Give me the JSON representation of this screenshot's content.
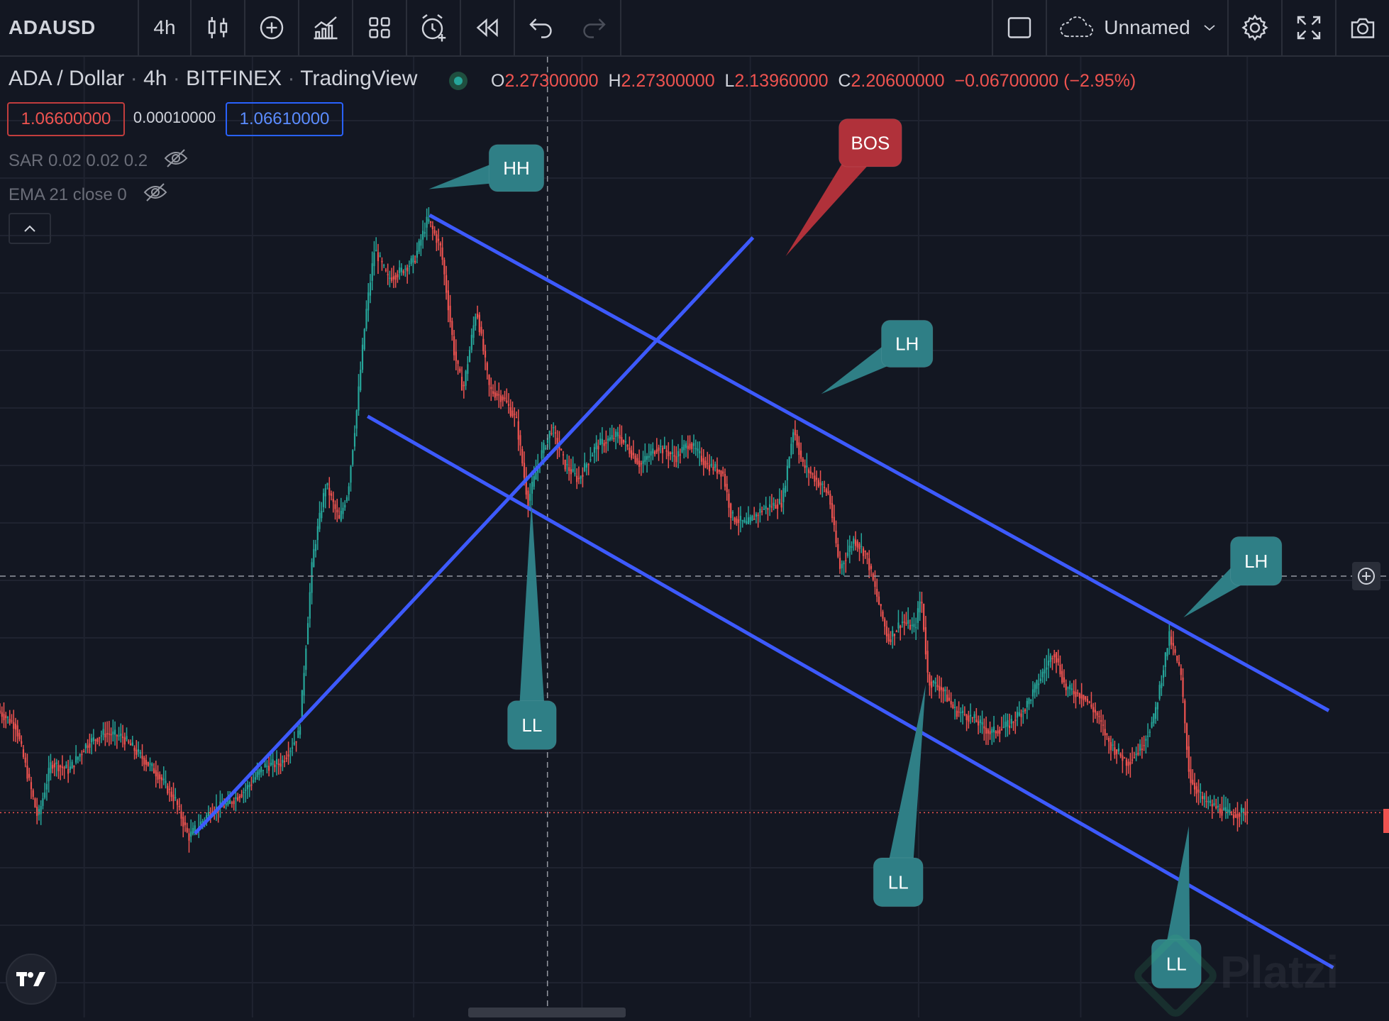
{
  "toolbar": {
    "symbol": "ADAUSD",
    "interval": "4h",
    "layout_name": "Unnamed",
    "icons": [
      "bar-style-icon",
      "add-compare-icon",
      "indicators-icon",
      "layout-templates-icon",
      "alert-icon",
      "replay-icon",
      "undo-icon",
      "redo-icon",
      "single-layout-icon",
      "cloud-icon",
      "settings-icon",
      "fullscreen-icon",
      "snapshot-icon"
    ]
  },
  "legend": {
    "pair": "ADA / Dollar",
    "interval": "4h",
    "exchange": "BITFINEX",
    "source": "TradingView",
    "sep": "·",
    "ohlc": {
      "o_label": "O",
      "o_value": "2.27300000",
      "h_label": "H",
      "h_value": "2.27300000",
      "l_label": "L",
      "l_value": "2.13960000",
      "c_label": "C",
      "c_value": "2.20600000",
      "change": "−0.06700000 (−2.95%)"
    }
  },
  "trade": {
    "sell_price": "1.06600000",
    "spread": "0.00010000",
    "buy_price": "1.06610000"
  },
  "indicators": [
    {
      "label": "SAR 0.02 0.02 0.2"
    },
    {
      "label": "EMA 21 close 0"
    }
  ],
  "watermark": "Platzi",
  "colors": {
    "background": "#131722",
    "grid": "#1f2330",
    "up_candle": "#26a69a",
    "down_candle": "#ef5350",
    "trendline": "#3d5afe",
    "label_teal": "#2f7f86",
    "label_red": "#b0313a",
    "current_price_line": "#ef5350"
  },
  "chart_data": {
    "type": "candlestick",
    "symbol": "ADAUSD",
    "timeframe": "4h",
    "grid": true,
    "price_path": [
      [
        0,
        1.34
      ],
      [
        20,
        1.3
      ],
      [
        45,
        1.05
      ],
      [
        60,
        1.2
      ],
      [
        80,
        1.18
      ],
      [
        100,
        1.25
      ],
      [
        120,
        1.28
      ],
      [
        140,
        1.27
      ],
      [
        160,
        1.22
      ],
      [
        180,
        1.17
      ],
      [
        200,
        1.1
      ],
      [
        215,
        1.0
      ],
      [
        240,
        1.07
      ],
      [
        260,
        1.09
      ],
      [
        280,
        1.13
      ],
      [
        300,
        1.19
      ],
      [
        320,
        1.2
      ],
      [
        340,
        1.28
      ],
      [
        355,
        1.75
      ],
      [
        370,
        1.95
      ],
      [
        385,
        1.85
      ],
      [
        395,
        1.93
      ],
      [
        405,
        2.15
      ],
      [
        415,
        2.4
      ],
      [
        425,
        2.58
      ],
      [
        440,
        2.5
      ],
      [
        455,
        2.52
      ],
      [
        470,
        2.55
      ],
      [
        485,
        2.66
      ],
      [
        500,
        2.58
      ],
      [
        515,
        2.3
      ],
      [
        525,
        2.2
      ],
      [
        540,
        2.42
      ],
      [
        555,
        2.2
      ],
      [
        570,
        2.18
      ],
      [
        585,
        2.12
      ],
      [
        598,
        1.9
      ],
      [
        612,
        2.02
      ],
      [
        625,
        2.1
      ],
      [
        640,
        2.0
      ],
      [
        655,
        1.96
      ],
      [
        675,
        2.05
      ],
      [
        700,
        2.08
      ],
      [
        725,
        2.0
      ],
      [
        745,
        2.05
      ],
      [
        765,
        2.02
      ],
      [
        780,
        2.06
      ],
      [
        800,
        2.0
      ],
      [
        818,
        1.98
      ],
      [
        828,
        1.86
      ],
      [
        845,
        1.84
      ],
      [
        862,
        1.88
      ],
      [
        885,
        1.9
      ],
      [
        898,
        2.1
      ],
      [
        908,
        2.0
      ],
      [
        920,
        1.97
      ],
      [
        938,
        1.92
      ],
      [
        950,
        1.72
      ],
      [
        966,
        1.8
      ],
      [
        980,
        1.76
      ],
      [
        995,
        1.62
      ],
      [
        1005,
        1.53
      ],
      [
        1020,
        1.58
      ],
      [
        1035,
        1.56
      ],
      [
        1042,
        1.65
      ],
      [
        1050,
        1.42
      ],
      [
        1065,
        1.4
      ],
      [
        1080,
        1.34
      ],
      [
        1100,
        1.32
      ],
      [
        1120,
        1.28
      ],
      [
        1140,
        1.3
      ],
      [
        1160,
        1.35
      ],
      [
        1175,
        1.42
      ],
      [
        1192,
        1.5
      ],
      [
        1205,
        1.4
      ],
      [
        1225,
        1.38
      ],
      [
        1240,
        1.33
      ],
      [
        1255,
        1.25
      ],
      [
        1275,
        1.2
      ],
      [
        1290,
        1.24
      ],
      [
        1305,
        1.32
      ],
      [
        1322,
        1.54
      ],
      [
        1335,
        1.44
      ],
      [
        1345,
        1.16
      ],
      [
        1360,
        1.1
      ],
      [
        1375,
        1.08
      ],
      [
        1392,
        1.06
      ],
      [
        1410,
        1.07
      ]
    ],
    "trendlines": [
      {
        "name": "upper-channel",
        "from": [
          485,
          2.67
        ],
        "to": [
          1500,
          1.34
        ]
      },
      {
        "name": "lower-channel",
        "from": [
          415,
          2.13
        ],
        "to": [
          1505,
          0.65
        ]
      },
      {
        "name": "rising-trendline",
        "from": [
          220,
          1.01
        ],
        "to": [
          850,
          2.61
        ]
      }
    ],
    "annotations": [
      {
        "text": "HH",
        "style": "teal",
        "tip": [
          484,
          2.74
        ]
      },
      {
        "text": "BOS",
        "style": "red",
        "tip": [
          887,
          2.56
        ]
      },
      {
        "text": "LH",
        "style": "teal",
        "tip": [
          927,
          2.19
        ]
      },
      {
        "text": "LL",
        "style": "teal",
        "tip": [
          600,
          1.9
        ]
      },
      {
        "text": "LH",
        "style": "teal",
        "tip": [
          1336,
          1.59
        ]
      },
      {
        "text": "LL",
        "style": "teal",
        "tip": [
          1045,
          1.41
        ]
      },
      {
        "text": "LL",
        "style": "teal",
        "tip": [
          1342,
          1.03
        ]
      }
    ],
    "current_price": 1.066
  }
}
